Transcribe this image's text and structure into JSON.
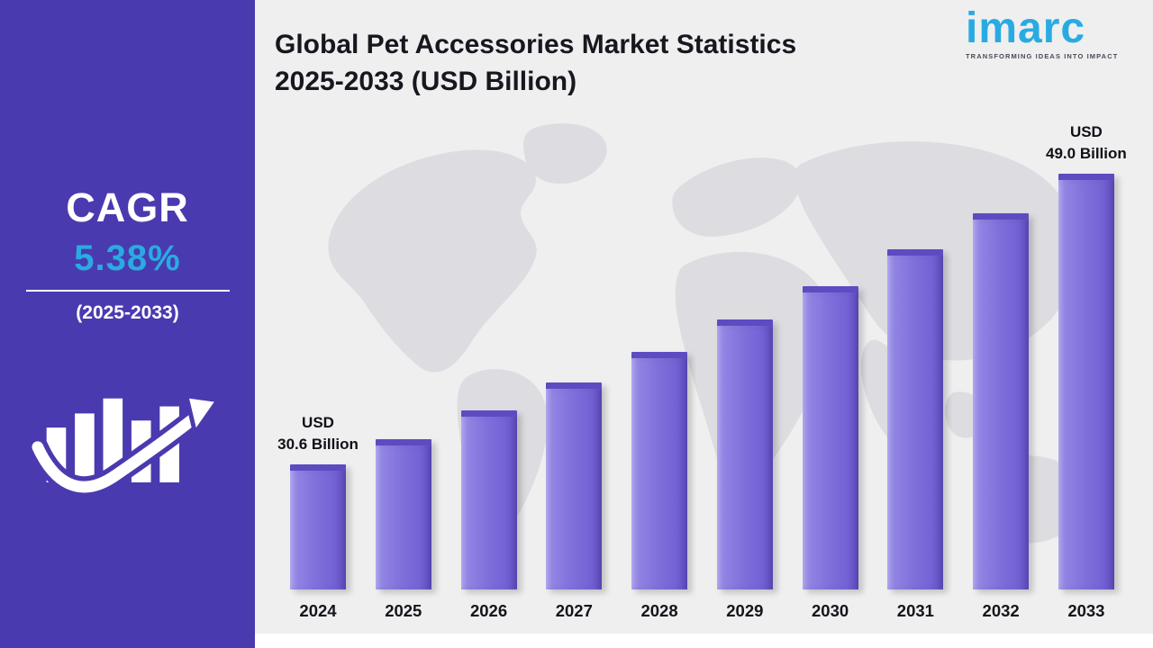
{
  "sidebar": {
    "cagr_label": "CAGR",
    "cagr_value": "5.38%",
    "period": "(2025-2033)"
  },
  "header": {
    "title_line1": "Global Pet Accessories Market Statistics",
    "title_line2": "2025-2033 (USD Billion)"
  },
  "logo": {
    "name": "imarc",
    "tagline": "TRANSFORMING IDEAS INTO IMPACT"
  },
  "colors": {
    "sidebar_bg": "#4A3AAF",
    "accent_cyan": "#29ABE2",
    "bar_face": "#8071DC",
    "bar_cap": "#5D4BC2",
    "chart_bg": "#EFEFF0",
    "map_fill": "#DDDDE1",
    "title_text": "#17171E"
  },
  "chart_data": {
    "type": "bar",
    "title": "Global Pet Accessories Market Statistics 2025-2033 (USD Billion)",
    "unit": "USD Billion",
    "categories": [
      "2024",
      "2025",
      "2026",
      "2027",
      "2028",
      "2029",
      "2030",
      "2031",
      "2032",
      "2033"
    ],
    "values": [
      30.6,
      32.2,
      34.0,
      35.8,
      37.7,
      39.8,
      41.9,
      44.2,
      46.5,
      49.0
    ],
    "annotations": [
      {
        "index": 0,
        "lines": [
          "USD",
          "30.6 Billion"
        ]
      },
      {
        "index": 9,
        "lines": [
          "USD",
          "49.0 Billion"
        ]
      }
    ],
    "cagr": "5.38%",
    "cagr_period": "2025-2033",
    "xlabel": "",
    "ylabel": "",
    "ylim": [
      30.6,
      49.0
    ],
    "grid": false,
    "legend": false
  }
}
